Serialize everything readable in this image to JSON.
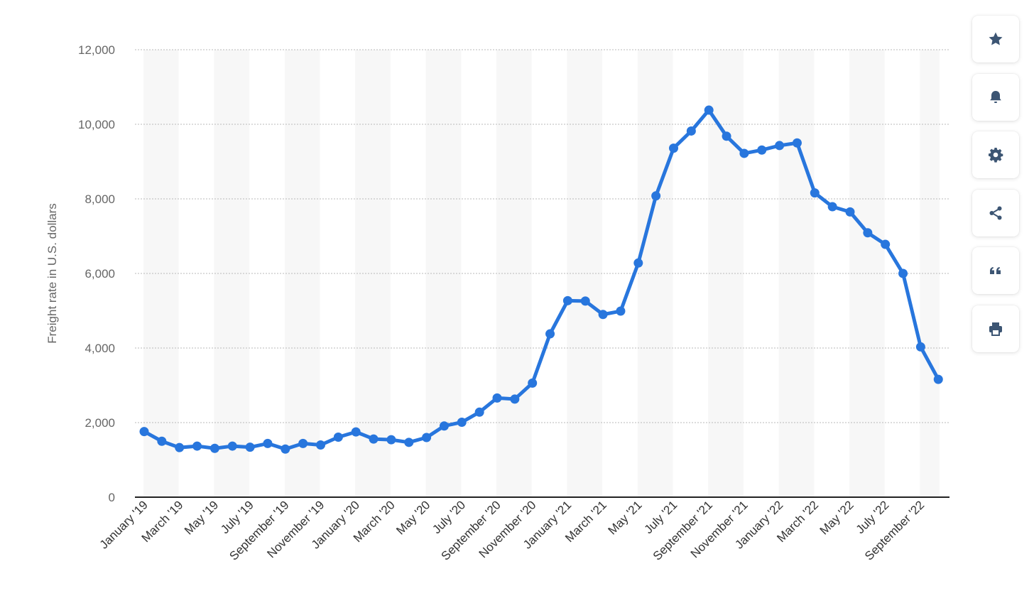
{
  "chart_data": {
    "type": "line",
    "ylabel": "Freight rate in U.S. dollars",
    "ylim": [
      0,
      12000
    ],
    "yticks": [
      0,
      2000,
      4000,
      6000,
      8000,
      10000,
      12000
    ],
    "ytick_labels": [
      "0",
      "2,000",
      "4,000",
      "6,000",
      "8,000",
      "10,000",
      "12,000"
    ],
    "grid": "horizontal dotted",
    "categories": [
      "January '19",
      "February '19",
      "March '19",
      "April '19",
      "May '19",
      "June '19",
      "July '19",
      "August '19",
      "September '19",
      "October '19",
      "November '19",
      "December '19",
      "January '20",
      "February '20",
      "March '20",
      "April '20",
      "May '20",
      "June '20",
      "July '20",
      "August '20",
      "September '20",
      "October '20",
      "November '20",
      "December '20",
      "January '21",
      "February '21",
      "March '21",
      "April '21",
      "May '21",
      "June '21",
      "July '21",
      "August '21",
      "September '21",
      "October '21",
      "November '21",
      "December '21",
      "January '22",
      "February '22",
      "March '22",
      "April '22",
      "May '22",
      "June '22",
      "July '22",
      "August '22",
      "September '22",
      "October '22"
    ],
    "xtick_labels": [
      "January '19",
      "March '19",
      "May '19",
      "July '19",
      "September '19",
      "November '19",
      "January '20",
      "March '20",
      "May '20",
      "July '20",
      "September '20",
      "November '20",
      "January '21",
      "March '21",
      "May '21",
      "July '21",
      "September '21",
      "November '21",
      "January '22",
      "March '22",
      "May '22",
      "July '22",
      "September '22"
    ],
    "values": [
      1760,
      1500,
      1330,
      1370,
      1310,
      1370,
      1340,
      1440,
      1290,
      1440,
      1400,
      1610,
      1750,
      1560,
      1540,
      1470,
      1600,
      1910,
      2010,
      2280,
      2660,
      2630,
      3060,
      4380,
      5270,
      5260,
      4900,
      4990,
      6280,
      8080,
      9360,
      9820,
      10380,
      9680,
      9220,
      9310,
      9430,
      9500,
      8160,
      7790,
      7650,
      7090,
      6780,
      6000,
      4030,
      3160
    ],
    "line_color": "#2876dd"
  },
  "toolbar": [
    {
      "name": "favorite-button",
      "icon": "star-icon"
    },
    {
      "name": "notification-button",
      "icon": "bell-icon"
    },
    {
      "name": "settings-button",
      "icon": "gear-icon"
    },
    {
      "name": "share-button",
      "icon": "share-icon"
    },
    {
      "name": "cite-button",
      "icon": "quote-icon"
    },
    {
      "name": "print-button",
      "icon": "printer-icon"
    }
  ]
}
